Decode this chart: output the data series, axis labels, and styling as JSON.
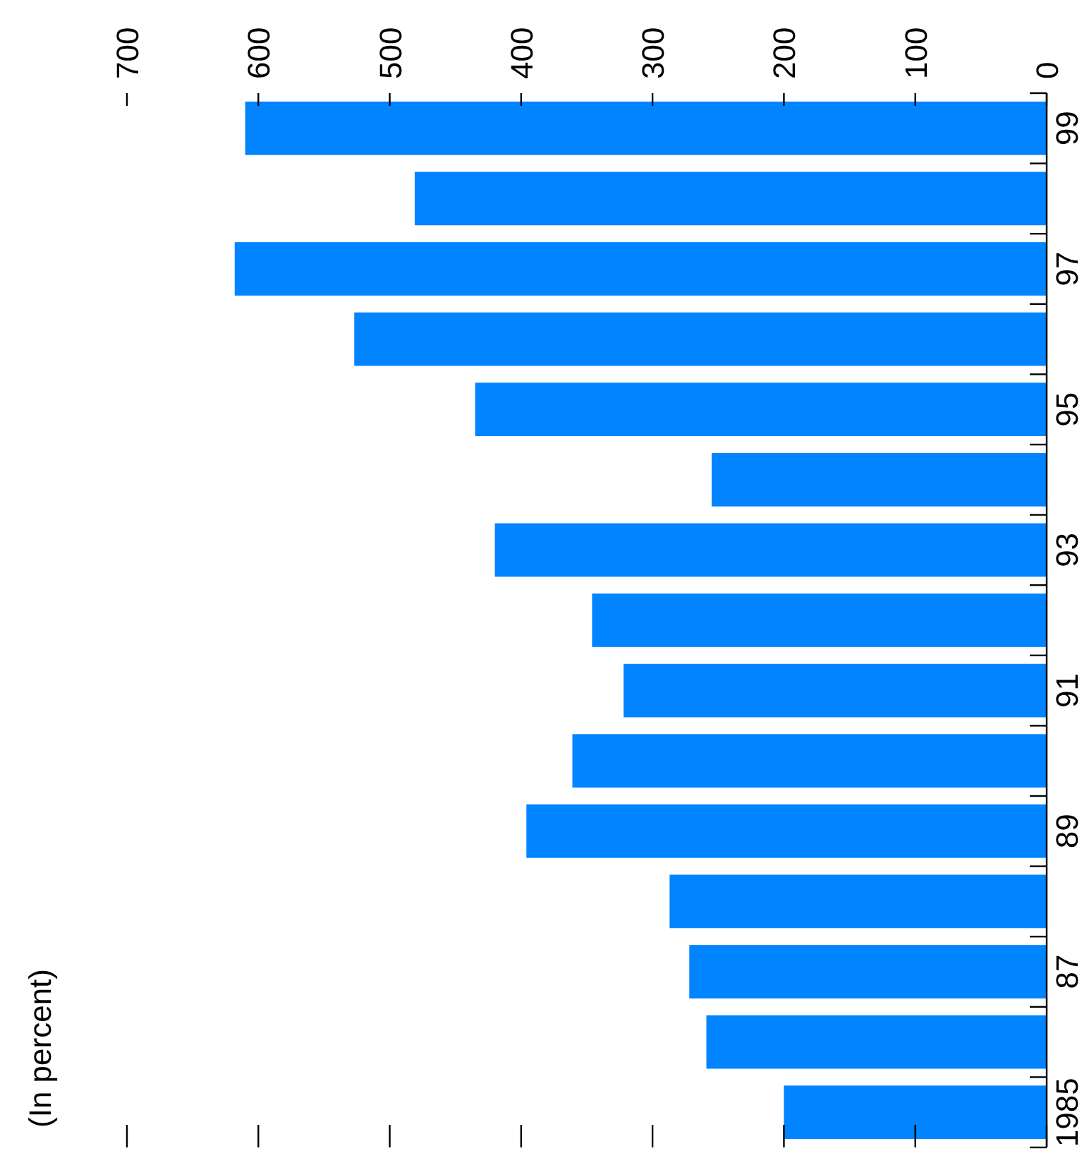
{
  "chart_data": {
    "type": "bar",
    "orientation": "horizontal",
    "subtitle": "(In percent)",
    "categories": [
      "99",
      null,
      "97",
      null,
      "95",
      null,
      "93",
      null,
      "91",
      null,
      "89",
      null,
      "87",
      null,
      "1985"
    ],
    "values": [
      610,
      481,
      618,
      527,
      435,
      255,
      420,
      346,
      322,
      361,
      396,
      287,
      272,
      259,
      200
    ],
    "color": "#0084ff",
    "xlim": [
      700,
      0
    ],
    "xticks": [
      0,
      100,
      200,
      300,
      400,
      500,
      600,
      700
    ],
    "grid": false
  }
}
